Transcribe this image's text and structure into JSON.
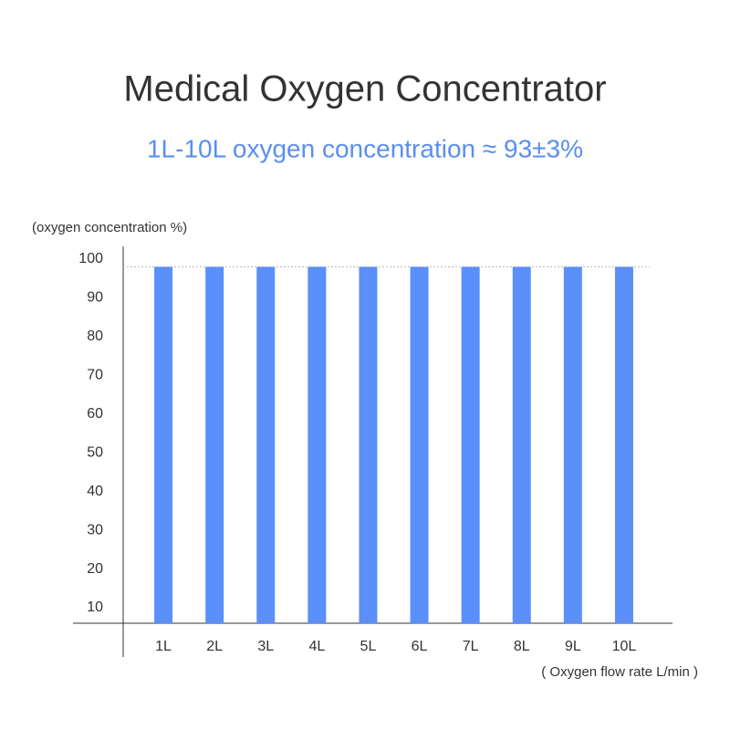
{
  "chart_data": {
    "type": "bar",
    "title": "Medical Oxygen Concentrator",
    "subtitle": "1L-10L oxygen concentration ≈ 93±3%",
    "y_label": "(oxygen concentration %)",
    "x_label": "( Oxygen flow rate L/min )",
    "categories": [
      "1L",
      "2L",
      "3L",
      "4L",
      "5L",
      "6L",
      "7L",
      "8L",
      "9L",
      "10L"
    ],
    "values": [
      98,
      98,
      98,
      98,
      98,
      98,
      98,
      98,
      98,
      98
    ],
    "color": "#5b8ff9",
    "reference_line": 98,
    "ylim": [
      6,
      100
    ],
    "yticks": [
      10,
      20,
      30,
      40,
      50,
      60,
      70,
      80,
      90,
      100
    ]
  }
}
